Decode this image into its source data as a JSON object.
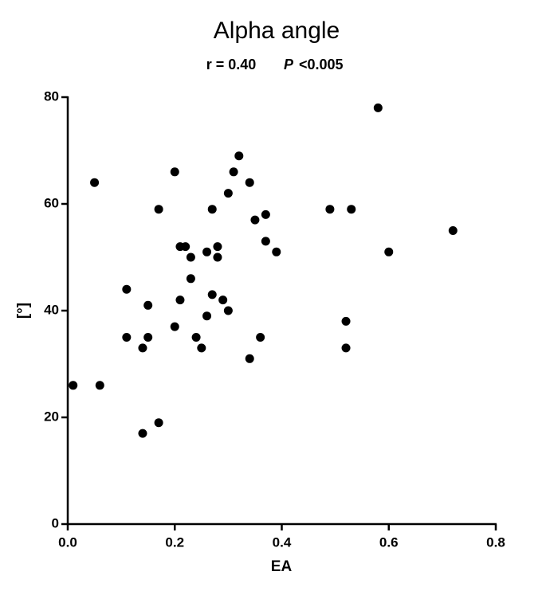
{
  "chart_data": {
    "type": "scatter",
    "title": "Alpha angle",
    "annotations": [
      "r = 0.40",
      "P",
      "<0.005"
    ],
    "x_label": "EA",
    "y_label": "[°]",
    "color": "#000000",
    "xlim": [
      0,
      0.8
    ],
    "ylim": [
      0,
      80
    ],
    "xticks": [
      {
        "value": 0,
        "label": "0.0"
      },
      0.2,
      0.4,
      0.6,
      0.8
    ],
    "yticks": [
      0,
      20,
      40,
      60,
      80
    ],
    "grid": false,
    "x": [
      0.01,
      0.05,
      0.06,
      0.11,
      0.11,
      0.14,
      0.14,
      0.15,
      0.15,
      0.17,
      0.17,
      0.2,
      0.2,
      0.21,
      0.22,
      0.21,
      0.23,
      0.23,
      0.24,
      0.25,
      0.26,
      0.26,
      0.27,
      0.27,
      0.28,
      0.28,
      0.29,
      0.3,
      0.3,
      0.31,
      0.32,
      0.34,
      0.34,
      0.35,
      0.36,
      0.37,
      0.37,
      0.39,
      0.49,
      0.52,
      0.52,
      0.53,
      0.58,
      0.6,
      0.72
    ],
    "values": [
      26,
      64,
      26,
      44,
      35,
      33,
      17,
      41,
      35,
      59,
      19,
      66,
      37,
      52,
      52,
      42,
      50,
      46,
      35,
      33,
      51,
      39,
      59,
      43,
      52,
      50,
      42,
      62,
      40,
      66,
      69,
      64,
      31,
      57,
      35,
      58,
      53,
      51,
      59,
      38,
      33,
      59,
      78,
      51,
      55
    ]
  }
}
